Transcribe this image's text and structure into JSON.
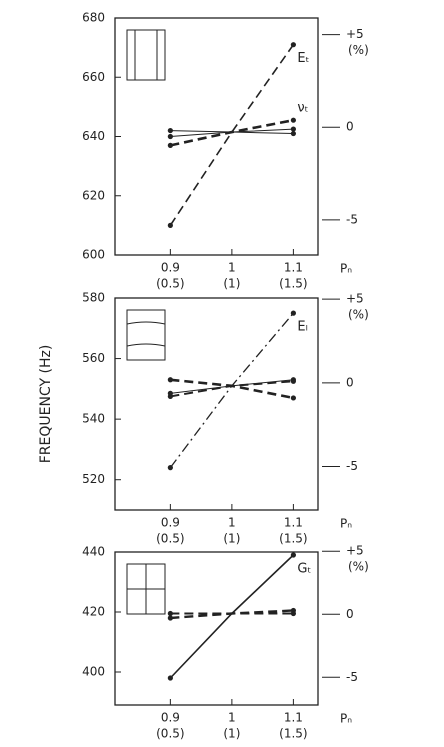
{
  "chart_data": [
    {
      "type": "line",
      "x": [
        0.9,
        1,
        1.1
      ],
      "xlim": [
        0.81,
        1.14
      ],
      "xticks": [
        0.9,
        1,
        1.1
      ],
      "xtick_sublabels": [
        "(0.5)",
        "(1)",
        "(1.5)"
      ],
      "xlabel": "Pₙ",
      "ylim": [
        600,
        680
      ],
      "yticks": [
        600,
        620,
        640,
        660,
        680
      ],
      "y2lim": [
        -6.9,
        5.9
      ],
      "y2ticks": [
        {
          "value": 5,
          "label": "+5"
        },
        0,
        -5
      ],
      "y2label": "(%)",
      "inset": "vertical",
      "series": [
        {
          "name": "Eₜ",
          "color": "#222",
          "linestyle": "dashed",
          "linewidth": 1.6,
          "values": [
            610,
            641.5,
            671
          ]
        },
        {
          "name": "νₜ",
          "color": "#222",
          "linestyle": "dashed",
          "linewidth": 2.6,
          "values": [
            637,
            641.5,
            645.5
          ]
        },
        {
          "color": "#222",
          "linestyle": "solid",
          "linewidth": 1,
          "values": [
            642,
            641.5,
            641
          ]
        },
        {
          "color": "#222",
          "linestyle": "solid",
          "linewidth": 1,
          "values": [
            640,
            641.5,
            642.5
          ]
        }
      ]
    },
    {
      "type": "line",
      "x": [
        0.9,
        1,
        1.1
      ],
      "xlim": [
        0.81,
        1.14
      ],
      "xticks": [
        0.9,
        1,
        1.1
      ],
      "xtick_sublabels": [
        "(0.5)",
        "(1)",
        "(1.5)"
      ],
      "xlabel": "Pₙ",
      "ylabel": "FREQUENCY (Hz)",
      "ylim": [
        510,
        580
      ],
      "yticks": [
        520,
        540,
        560,
        580
      ],
      "y2lim": [
        -7.6,
        5.07
      ],
      "y2ticks": [
        {
          "value": 5,
          "label": "+5"
        },
        0,
        -5
      ],
      "y2label": "(%)",
      "inset": "horizontal",
      "series": [
        {
          "name": "Eₗ",
          "color": "#222",
          "linestyle": "dashdot",
          "linewidth": 1.3,
          "values": [
            524,
            551,
            575
          ]
        },
        {
          "color": "#222",
          "linestyle": "dashed",
          "linewidth": 2.6,
          "values": [
            553,
            551,
            547
          ]
        },
        {
          "color": "#222",
          "linestyle": "dashed",
          "linewidth": 2,
          "values": [
            547.5,
            551,
            552.5
          ]
        },
        {
          "color": "#222",
          "linestyle": "solid",
          "linewidth": 1,
          "values": [
            548.5,
            551,
            553
          ]
        }
      ]
    },
    {
      "type": "line",
      "x": [
        0.9,
        1,
        1.1
      ],
      "xlim": [
        0.81,
        1.14
      ],
      "xticks": [
        0.9,
        1,
        1.1
      ],
      "xtick_sublabels": [
        "(0.5)",
        "(1)",
        "(1.5)"
      ],
      "xlabel": "Pₙ",
      "ylim": [
        389,
        440
      ],
      "yticks": [
        400,
        420,
        440
      ],
      "y2lim": [
        -7.2,
        4.94
      ],
      "y2ticks": [
        {
          "value": 5,
          "label": "+5"
        },
        0,
        -5
      ],
      "y2label": "(%)",
      "inset": "grid",
      "series": [
        {
          "name": "Gₜ",
          "color": "#222",
          "linestyle": "solid",
          "linewidth": 1.6,
          "values": [
            398,
            419.5,
            439
          ]
        },
        {
          "color": "#222",
          "linestyle": "dashed",
          "linewidth": 2.4,
          "values": [
            418,
            419.5,
            420.5
          ]
        },
        {
          "color": "#222",
          "linestyle": "dashed",
          "linewidth": 2,
          "values": [
            419.5,
            419.5,
            419.5
          ]
        }
      ]
    }
  ]
}
